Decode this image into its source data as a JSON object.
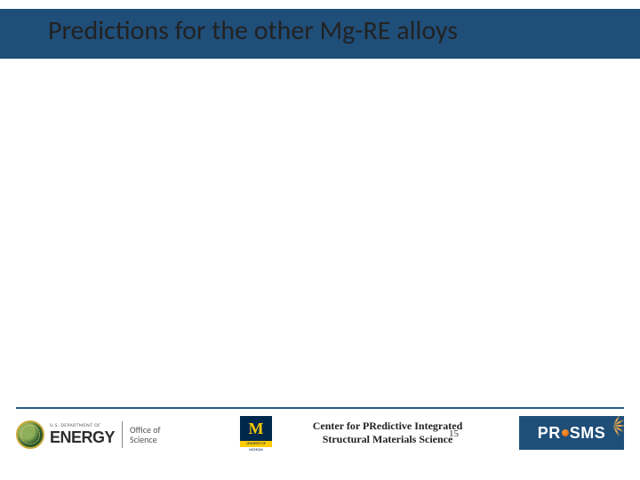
{
  "colors": {
    "header_band": "#1f4e79",
    "footer_rule": "#2a5b86",
    "page_bg": "#ffffff",
    "title_text": "#222222",
    "um_blue": "#00274c",
    "um_maize": "#ffcb05",
    "prisms_bg": "#1f4e79",
    "prisms_text": "#ffffff",
    "prisms_accent": "#ff9a3a"
  },
  "title": "Predictions for the other Mg-RE alloys",
  "footer": {
    "doe": {
      "dept_line": "U.S. DEPARTMENT OF",
      "energy": "ENERGY",
      "office_line1": "Office of",
      "office_line2": "Science"
    },
    "um": {
      "letter": "M",
      "bar_text": "UNIVERSITY OF MICHIGAN"
    },
    "center_line1": "Center for  PRedictive Integrated",
    "center_line2": "Structural Materials Science",
    "page_number": "15",
    "prisms": {
      "pre": "PR",
      "post": "SMS"
    }
  }
}
